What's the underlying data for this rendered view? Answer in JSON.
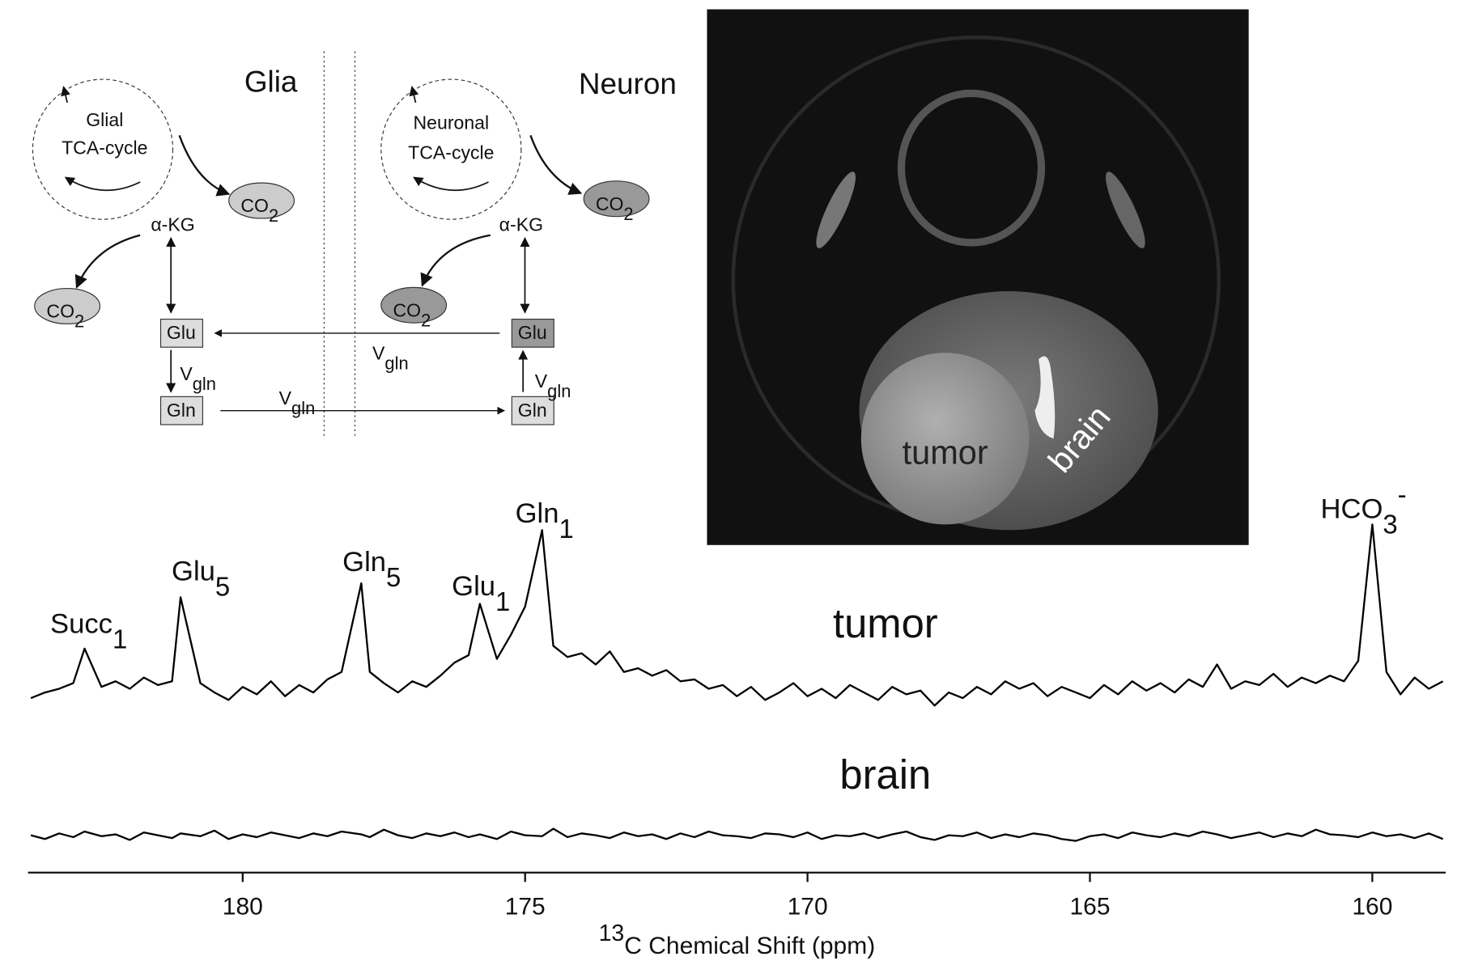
{
  "chart_data": {
    "type": "line",
    "x_label": {
      "superscript": "13",
      "text": "C Chemical Shift (ppm)"
    },
    "xlim": [
      183.8,
      158.7
    ],
    "xticks": [
      180,
      175,
      170,
      165,
      160
    ],
    "x": [
      183.75,
      183.5,
      183.25,
      183.0,
      182.8,
      182.5,
      182.25,
      182.0,
      181.75,
      181.5,
      181.25,
      181.1,
      180.75,
      180.5,
      180.25,
      180.0,
      179.75,
      179.5,
      179.25,
      179.0,
      178.75,
      178.5,
      178.25,
      177.9,
      177.75,
      177.5,
      177.25,
      177.0,
      176.75,
      176.5,
      176.25,
      176.0,
      175.8,
      175.5,
      175.25,
      175.0,
      174.7,
      174.5,
      174.25,
      174.0,
      173.75,
      173.5,
      173.25,
      173.0,
      172.75,
      172.5,
      172.25,
      172.0,
      171.75,
      171.5,
      171.25,
      171.0,
      170.75,
      170.5,
      170.25,
      170.0,
      169.75,
      169.5,
      169.25,
      169.0,
      168.75,
      168.5,
      168.25,
      168.0,
      167.75,
      167.5,
      167.25,
      167.0,
      166.75,
      166.5,
      166.25,
      166.0,
      165.75,
      165.5,
      165.25,
      165.0,
      164.75,
      164.5,
      164.25,
      164.0,
      163.75,
      163.5,
      163.25,
      163.0,
      162.75,
      162.5,
      162.25,
      162.0,
      161.75,
      161.5,
      161.25,
      161.0,
      160.75,
      160.5,
      160.25,
      160.0,
      159.75,
      159.5,
      159.25,
      159.0,
      158.75
    ],
    "series": [
      {
        "name": "tumor",
        "color": "#000000",
        "values": [
          12,
          18,
          22,
          28,
          65,
          24,
          30,
          22,
          34,
          26,
          30,
          120,
          28,
          18,
          10,
          24,
          16,
          30,
          14,
          26,
          18,
          32,
          40,
          135,
          40,
          28,
          18,
          30,
          24,
          36,
          50,
          58,
          113,
          54,
          80,
          110,
          192,
          68,
          56,
          60,
          48,
          62,
          40,
          44,
          36,
          42,
          30,
          32,
          22,
          26,
          14,
          24,
          10,
          18,
          28,
          14,
          22,
          12,
          26,
          18,
          10,
          24,
          16,
          20,
          4,
          18,
          12,
          24,
          16,
          30,
          22,
          28,
          14,
          24,
          18,
          12,
          26,
          16,
          30,
          20,
          28,
          18,
          32,
          24,
          48,
          22,
          30,
          26,
          38,
          24,
          34,
          28,
          36,
          30,
          52,
          198,
          40,
          16,
          34,
          22,
          30
        ]
      },
      {
        "name": "brain",
        "color": "#000000",
        "values": [
          10,
          6,
          12,
          8,
          14,
          9,
          11,
          5,
          13,
          10,
          7,
          12,
          9,
          15,
          6,
          11,
          8,
          13,
          10,
          7,
          12,
          9,
          14,
          11,
          8,
          16,
          10,
          7,
          12,
          9,
          13,
          8,
          11,
          6,
          14,
          10,
          9,
          17,
          8,
          12,
          10,
          7,
          13,
          9,
          11,
          6,
          12,
          8,
          14,
          10,
          9,
          7,
          12,
          11,
          8,
          13,
          6,
          10,
          9,
          12,
          7,
          11,
          14,
          8,
          5,
          10,
          9,
          13,
          7,
          11,
          8,
          12,
          10,
          6,
          4,
          9,
          11,
          7,
          13,
          10,
          8,
          12,
          9,
          14,
          11,
          7,
          10,
          13,
          8,
          12,
          9,
          16,
          11,
          10,
          8,
          13,
          9,
          11,
          7,
          12,
          6
        ]
      }
    ],
    "annotations": [
      {
        "text": "Succ",
        "subscript": "1"
      },
      {
        "text": "Glu",
        "subscript": "5"
      },
      {
        "text": "Gln",
        "subscript": "5"
      },
      {
        "text": "Glu",
        "subscript": "1"
      },
      {
        "text": "Gln",
        "subscript": "1"
      },
      {
        "text": "HCO",
        "subscript": "3",
        "superscript": "-"
      }
    ]
  },
  "diagram": {
    "glia": "Glia",
    "neuron": "Neuron",
    "glial_cycle": [
      "Glial",
      "TCA-cycle"
    ],
    "neuronal_cycle": [
      "Neuronal",
      "TCA-cycle"
    ],
    "akg": "α-KG",
    "co2": {
      "text": "CO",
      "subscript": "2"
    },
    "glu": "Glu",
    "gln": "Gln",
    "vgln": {
      "text": "V",
      "subscript": "gln"
    }
  },
  "image": {
    "labels": [
      "tumor",
      "brain"
    ]
  }
}
